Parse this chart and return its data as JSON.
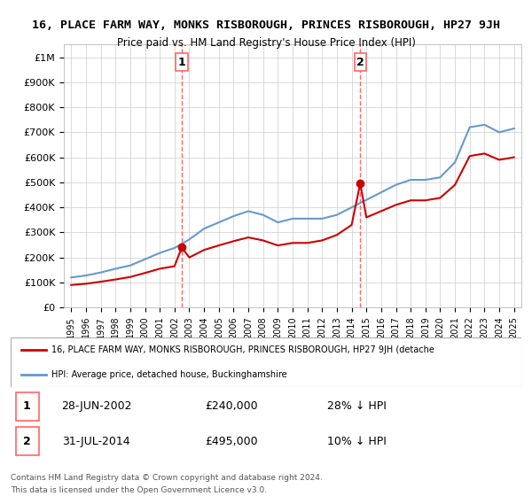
{
  "title": "16, PLACE FARM WAY, MONKS RISBOROUGH, PRINCES RISBOROUGH, HP27 9JH",
  "subtitle": "Price paid vs. HM Land Registry's House Price Index (HPI)",
  "red_label": "16, PLACE FARM WAY, MONKS RISBOROUGH, PRINCES RISBOROUGH, HP27 9JH (detache",
  "blue_label": "HPI: Average price, detached house, Buckinghamshire",
  "sale1_date": "28-JUN-2002",
  "sale1_price": 240000,
  "sale1_pct": "28% ↓ HPI",
  "sale1_year": 2002.49,
  "sale2_date": "31-JUL-2014",
  "sale2_price": 495000,
  "sale2_pct": "10% ↓ HPI",
  "sale2_year": 2014.58,
  "footer1": "Contains HM Land Registry data © Crown copyright and database right 2024.",
  "footer2": "This data is licensed under the Open Government Licence v3.0.",
  "ylim": [
    0,
    1050000
  ],
  "xlim_start": 1995,
  "xlim_end": 2025.5,
  "background_color": "#ffffff",
  "grid_color": "#cccccc",
  "red_color": "#cc0000",
  "blue_color": "#6699cc",
  "dashed_color": "#ff6666",
  "hpi_years": [
    1995,
    1996,
    1997,
    1998,
    1999,
    2000,
    2001,
    2002,
    2003,
    2004,
    2005,
    2006,
    2007,
    2008,
    2009,
    2010,
    2011,
    2012,
    2013,
    2014,
    2015,
    2016,
    2017,
    2018,
    2019,
    2020,
    2021,
    2022,
    2023,
    2024,
    2025
  ],
  "hpi_values": [
    120000,
    128000,
    140000,
    155000,
    168000,
    193000,
    218000,
    238000,
    272000,
    315000,
    340000,
    365000,
    385000,
    370000,
    340000,
    355000,
    355000,
    355000,
    370000,
    400000,
    430000,
    460000,
    490000,
    510000,
    510000,
    520000,
    580000,
    720000,
    730000,
    700000,
    715000
  ],
  "price_years": [
    1995,
    1996,
    1997,
    1998,
    1999,
    2000,
    2001,
    2002,
    2002.49,
    2003,
    2004,
    2005,
    2006,
    2007,
    2008,
    2009,
    2010,
    2011,
    2012,
    2013,
    2014,
    2014.58,
    2015,
    2016,
    2017,
    2018,
    2019,
    2020,
    2021,
    2022,
    2023,
    2024,
    2025
  ],
  "price_values": [
    90000,
    95000,
    103000,
    112000,
    122000,
    138000,
    155000,
    165000,
    240000,
    200000,
    230000,
    248000,
    265000,
    280000,
    268000,
    248000,
    258000,
    258000,
    268000,
    290000,
    330000,
    495000,
    360000,
    385000,
    410000,
    428000,
    428000,
    438000,
    490000,
    605000,
    615000,
    590000,
    600000
  ]
}
